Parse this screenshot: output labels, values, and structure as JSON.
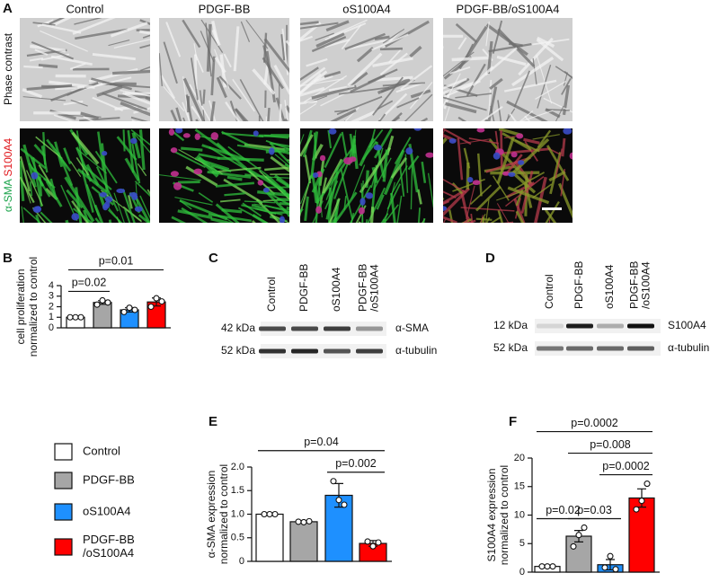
{
  "panels": {
    "A": {
      "letter": "A",
      "columns": [
        "Control",
        "PDGF-BB",
        "oS100A4",
        "PDGF-BB/oS100A4"
      ],
      "row1": "Phase contrast",
      "row2": [
        "α-SMA",
        "S100A4"
      ]
    },
    "B": {
      "letter": "B"
    },
    "C": {
      "letter": "C"
    },
    "D": {
      "letter": "D"
    },
    "E": {
      "letter": "E"
    },
    "F": {
      "letter": "F"
    }
  },
  "legend": [
    {
      "name": [
        "Control"
      ],
      "color": "#ffffff"
    },
    {
      "name": [
        "PDGF-BB"
      ],
      "color": "#a6a6a6"
    },
    {
      "name": [
        "oS100A4"
      ],
      "color": "#1e90ff"
    },
    {
      "name": [
        "PDGF-BB",
        "/oS100A4"
      ],
      "color": "#ff0000"
    }
  ],
  "blots": [
    {
      "columns": [
        [
          "Control"
        ],
        [
          "PDGF-BB"
        ],
        [
          "oS100A4"
        ],
        [
          "PDGF-BB",
          "/oS100A4"
        ]
      ],
      "rows": [
        {
          "kda": "42 kDa",
          "protein": "α-SMA"
        },
        {
          "kda": "52 kDa",
          "protein": "α-tubulin"
        }
      ]
    },
    {
      "columns": [
        [
          "Control"
        ],
        [
          "PDGF-BB"
        ],
        [
          "oS100A4"
        ],
        [
          "PDGF-BB",
          "/oS100A4"
        ]
      ],
      "rows": [
        {
          "kda": "12 kDa",
          "protein": "S100A4"
        },
        {
          "kda": "52 kDa",
          "protein": "α-tubulin"
        }
      ]
    }
  ],
  "chart_data": [
    {
      "type": "bar",
      "ylabel": [
        "cell proliferation",
        "normalized to control"
      ],
      "categories": [
        null,
        null,
        null,
        null
      ],
      "colors": [
        "#ffffff",
        "#a6a6a6",
        "#1e90ff",
        "#ff0000"
      ],
      "values": [
        1,
        2.4,
        1.7,
        2.45
      ],
      "errors": [
        0.03,
        0.17,
        0.2,
        0.38
      ],
      "points": [
        [
          1,
          1,
          1
        ],
        [
          2.2,
          2.6,
          2.4
        ],
        [
          1.5,
          1.9,
          1.7
        ],
        [
          2.0,
          2.8,
          2.5
        ]
      ],
      "ylim": [
        0,
        4
      ],
      "yticks": [
        0,
        1,
        2,
        3,
        4
      ],
      "annotations": [
        {
          "label": "p=0.02",
          "from": 0,
          "to": 1
        },
        {
          "label": "p=0.01",
          "from": 0,
          "to": 3
        }
      ]
    },
    {
      "type": "bar",
      "ylabel": [
        "α-SMA expression",
        "normalized to control"
      ],
      "categories": [
        null,
        null,
        null,
        null
      ],
      "colors": [
        "#ffffff",
        "#a6a6a6",
        "#1e90ff",
        "#ff0000"
      ],
      "values": [
        1.0,
        0.84,
        1.4,
        0.38
      ],
      "errors": [
        0.005,
        0.02,
        0.25,
        0.06
      ],
      "points": [
        [
          1,
          1,
          1
        ],
        [
          0.84,
          0.83,
          0.85
        ],
        [
          1.7,
          1.3,
          1.2
        ],
        [
          0.42,
          0.32,
          0.4
        ]
      ],
      "ylim": [
        0,
        2
      ],
      "yticks": [
        0,
        0.5,
        {
          "value": 1,
          "label": "1.0"
        },
        1.5,
        {
          "value": 2,
          "label": "2.0"
        }
      ],
      "annotations": [
        {
          "label": "p=0.002",
          "from": 2,
          "to": 3
        },
        {
          "label": "p=0.04",
          "from": 0,
          "to": 3
        }
      ]
    },
    {
      "type": "bar",
      "ylabel": [
        "S100A4 expression",
        "normalized to control"
      ],
      "categories": [
        null,
        null,
        null,
        null
      ],
      "colors": [
        "#ffffff",
        "#a6a6a6",
        "#1e90ff",
        "#ff0000"
      ],
      "values": [
        1,
        6.3,
        1.3,
        13
      ],
      "errors": [
        0.1,
        1,
        0.9,
        1.6
      ],
      "points": [
        [
          1,
          1,
          1
        ],
        [
          4.5,
          6.5,
          7.8
        ],
        [
          0.8,
          2.8,
          0.5
        ],
        [
          11,
          12.5,
          15.5
        ]
      ],
      "ylim": [
        0,
        20
      ],
      "yticks": [
        0,
        5,
        10,
        15,
        20
      ],
      "annotations": [
        {
          "label": "p=0.02",
          "from": 0,
          "to": 1
        },
        {
          "label": "p=0.03",
          "from": 1,
          "to": 2
        },
        {
          "label": "p=0.0002",
          "from": 2,
          "to": 3
        },
        {
          "label": "p=0.008",
          "from": 1,
          "to": 3
        },
        {
          "label": "p=0.0002",
          "from": 0,
          "to": 3
        }
      ]
    }
  ]
}
